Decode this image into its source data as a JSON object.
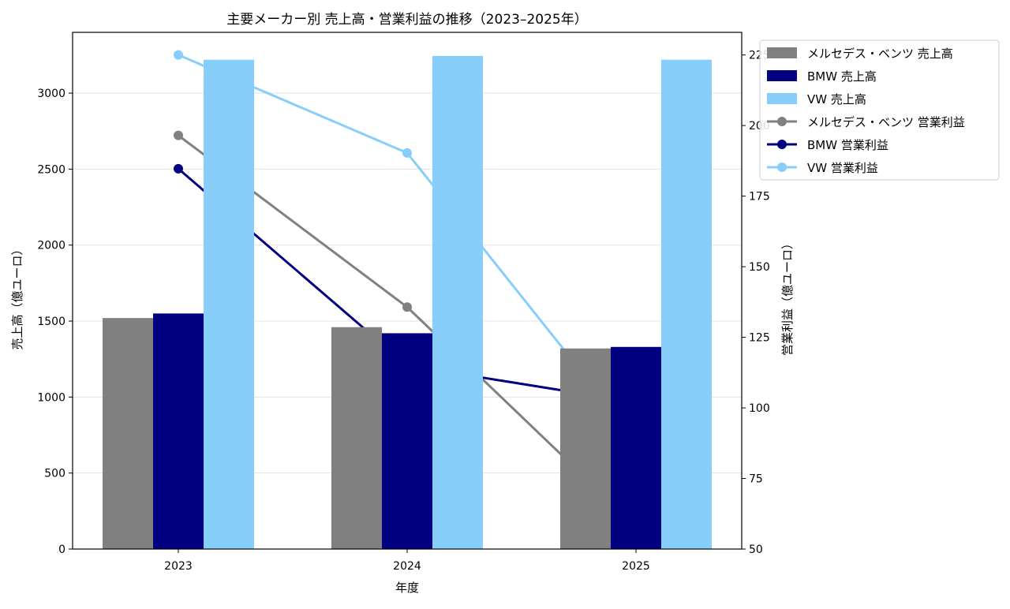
{
  "chart_data": {
    "type": "bar+line",
    "title": "主要メーカー別 売上高・営業利益の推移（2023–2025年）",
    "xlabel": "年度",
    "ylabel_left": "売上高（億ユーロ）",
    "ylabel_right": "営業利益（億ユーロ）",
    "categories": [
      "2023",
      "2024",
      "2025"
    ],
    "ylim_left": [
      0,
      3400
    ],
    "yticks_left": [
      0,
      500,
      1000,
      1500,
      2000,
      2500,
      3000
    ],
    "ylim_right": [
      50,
      233
    ],
    "yticks_right": [
      50,
      75,
      100,
      125,
      150,
      175,
      200,
      225
    ],
    "grid": "horizontal",
    "legend_position": "outside-right-top",
    "bar_series": [
      {
        "name": "メルセデス・ベンツ 売上高",
        "color": "#808080",
        "values": [
          1520,
          1460,
          1320
        ]
      },
      {
        "name": "BMW 売上高",
        "color": "#000080",
        "values": [
          1550,
          1420,
          1330
        ]
      },
      {
        "name": "VW 売上高",
        "color": "#87CEFA",
        "values": [
          3220,
          3245,
          3220
        ]
      }
    ],
    "line_series": [
      {
        "name": "メルセデス・ベンツ 営業利益",
        "color": "#808080",
        "values": [
          196.5,
          135.7,
          58.1
        ]
      },
      {
        "name": "BMW 営業利益",
        "color": "#000080",
        "values": [
          184.7,
          115,
          102
        ]
      },
      {
        "name": "VW 営業利益",
        "color": "#87CEFA",
        "values": [
          225,
          190.3,
          88.6
        ]
      }
    ]
  }
}
